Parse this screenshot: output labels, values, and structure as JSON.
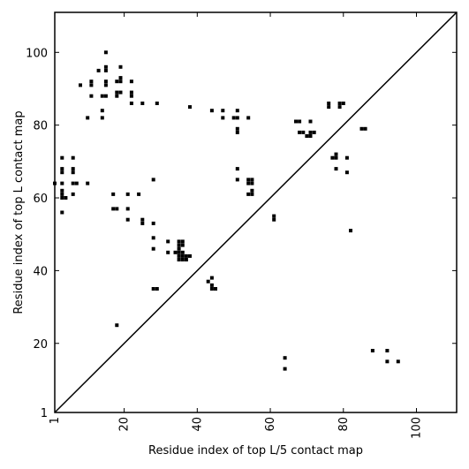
{
  "chart_data": {
    "type": "scatter",
    "xlabel": "Residue index of top L/5 contact map",
    "ylabel": "Residue index of top L contact map",
    "xlim": [
      1,
      111
    ],
    "ylim": [
      1,
      111
    ],
    "xticks": [
      1,
      20,
      40,
      60,
      80,
      100
    ],
    "yticks": [
      1,
      20,
      40,
      60,
      80,
      100
    ],
    "xtick_rotation": -90,
    "grid": false,
    "diagonal": true,
    "marker": "square",
    "marker_color": "#000000",
    "points": [
      [
        15,
        100
      ],
      [
        13,
        95
      ],
      [
        15,
        96
      ],
      [
        15,
        95
      ],
      [
        19,
        96
      ],
      [
        11,
        92
      ],
      [
        11,
        91
      ],
      [
        15,
        92
      ],
      [
        15,
        91
      ],
      [
        18,
        92
      ],
      [
        19,
        92
      ],
      [
        19,
        93
      ],
      [
        22,
        92
      ],
      [
        8,
        91
      ],
      [
        18,
        89
      ],
      [
        18,
        88
      ],
      [
        19,
        89
      ],
      [
        22,
        89
      ],
      [
        22,
        88
      ],
      [
        11,
        88
      ],
      [
        14,
        88
      ],
      [
        15,
        88
      ],
      [
        22,
        86
      ],
      [
        25,
        86
      ],
      [
        29,
        86
      ],
      [
        38,
        85
      ],
      [
        10,
        82
      ],
      [
        14,
        84
      ],
      [
        14,
        82
      ],
      [
        44,
        84
      ],
      [
        47,
        84
      ],
      [
        51,
        84
      ],
      [
        47,
        82
      ],
      [
        50,
        82
      ],
      [
        51,
        82
      ],
      [
        54,
        82
      ],
      [
        51,
        79
      ],
      [
        51,
        78
      ],
      [
        76,
        86
      ],
      [
        76,
        85
      ],
      [
        79,
        86
      ],
      [
        79,
        85
      ],
      [
        80,
        86
      ],
      [
        67,
        81
      ],
      [
        68,
        81
      ],
      [
        71,
        81
      ],
      [
        68,
        78
      ],
      [
        69,
        78
      ],
      [
        71,
        78
      ],
      [
        72,
        78
      ],
      [
        70,
        77
      ],
      [
        71,
        77
      ],
      [
        85,
        79
      ],
      [
        86,
        79
      ],
      [
        77,
        71
      ],
      [
        78,
        71
      ],
      [
        78,
        72
      ],
      [
        81,
        71
      ],
      [
        78,
        68
      ],
      [
        81,
        67
      ],
      [
        1,
        64
      ],
      [
        3,
        71
      ],
      [
        3,
        68
      ],
      [
        3,
        67
      ],
      [
        6,
        71
      ],
      [
        6,
        68
      ],
      [
        6,
        67
      ],
      [
        3,
        64
      ],
      [
        6,
        64
      ],
      [
        7,
        64
      ],
      [
        10,
        64
      ],
      [
        3,
        62
      ],
      [
        3,
        61
      ],
      [
        3,
        60
      ],
      [
        4,
        60
      ],
      [
        6,
        61
      ],
      [
        3,
        56
      ],
      [
        17,
        61
      ],
      [
        21,
        61
      ],
      [
        24,
        61
      ],
      [
        17,
        57
      ],
      [
        18,
        57
      ],
      [
        21,
        57
      ],
      [
        21,
        54
      ],
      [
        25,
        54
      ],
      [
        25,
        53
      ],
      [
        28,
        53
      ],
      [
        28,
        65
      ],
      [
        51,
        68
      ],
      [
        51,
        65
      ],
      [
        54,
        65
      ],
      [
        55,
        65
      ],
      [
        54,
        64
      ],
      [
        55,
        64
      ],
      [
        54,
        61
      ],
      [
        55,
        62
      ],
      [
        55,
        61
      ],
      [
        61,
        55
      ],
      [
        61,
        54
      ],
      [
        28,
        49
      ],
      [
        32,
        48
      ],
      [
        35,
        48
      ],
      [
        36,
        48
      ],
      [
        35,
        47
      ],
      [
        36,
        47
      ],
      [
        35,
        46
      ],
      [
        28,
        46
      ],
      [
        32,
        45
      ],
      [
        34,
        45
      ],
      [
        35,
        45
      ],
      [
        36,
        45
      ],
      [
        35,
        44
      ],
      [
        36,
        44
      ],
      [
        37,
        44
      ],
      [
        38,
        44
      ],
      [
        35,
        43
      ],
      [
        36,
        43
      ],
      [
        37,
        43
      ],
      [
        44,
        38
      ],
      [
        43,
        37
      ],
      [
        44,
        36
      ],
      [
        44,
        35
      ],
      [
        45,
        35
      ],
      [
        28,
        35
      ],
      [
        29,
        35
      ],
      [
        18,
        25
      ],
      [
        82,
        51
      ],
      [
        88,
        18
      ],
      [
        92,
        18
      ],
      [
        92,
        15
      ],
      [
        95,
        15
      ],
      [
        64,
        16
      ],
      [
        64,
        13
      ]
    ]
  }
}
